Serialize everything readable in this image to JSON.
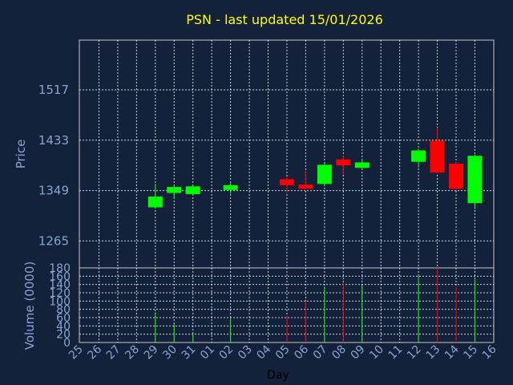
{
  "chart_data": {
    "type": "candlestick",
    "title": "PSN - last updated 15/01/2026",
    "xlabel": "Day",
    "price_panel": {
      "ylabel": "Price",
      "yticks": [
        1265,
        1349,
        1433,
        1517
      ],
      "ylim": [
        1220,
        1600
      ]
    },
    "volume_panel": {
      "ylabel": "Volume (0000)",
      "yticks": [
        0,
        20,
        40,
        60,
        80,
        100,
        120,
        140,
        160,
        180
      ],
      "ylim": [
        0,
        180
      ]
    },
    "categories": [
      "25",
      "26",
      "27",
      "28",
      "29",
      "30",
      "31",
      "01",
      "02",
      "03",
      "04",
      "05",
      "06",
      "07",
      "08",
      "09",
      "10",
      "11",
      "12",
      "13",
      "14",
      "15",
      "16"
    ],
    "candles": [
      {
        "day": "29",
        "open": 1321,
        "close": 1339,
        "high": 1360,
        "low": 1320,
        "volume": 73,
        "direction": "up"
      },
      {
        "day": "30",
        "open": 1345,
        "close": 1355,
        "high": 1357,
        "low": 1335,
        "volume": 45,
        "direction": "up"
      },
      {
        "day": "31",
        "open": 1343,
        "close": 1356,
        "high": 1358,
        "low": 1341,
        "volume": 20,
        "direction": "up"
      },
      {
        "day": "02",
        "open": 1350,
        "close": 1358,
        "high": 1363,
        "low": 1344,
        "volume": 58,
        "direction": "up"
      },
      {
        "day": "05",
        "open": 1368,
        "close": 1358,
        "high": 1372,
        "low": 1345,
        "volume": 65,
        "direction": "down"
      },
      {
        "day": "06",
        "open": 1359,
        "close": 1352,
        "high": 1382,
        "low": 1351,
        "volume": 100,
        "direction": "down"
      },
      {
        "day": "07",
        "open": 1360,
        "close": 1392,
        "high": 1394,
        "low": 1359,
        "volume": 135,
        "direction": "up"
      },
      {
        "day": "08",
        "open": 1401,
        "close": 1391,
        "high": 1407,
        "low": 1375,
        "volume": 145,
        "direction": "down"
      },
      {
        "day": "09",
        "open": 1387,
        "close": 1396,
        "high": 1402,
        "low": 1383,
        "volume": 138,
        "direction": "up"
      },
      {
        "day": "12",
        "open": 1397,
        "close": 1416,
        "high": 1419,
        "low": 1387,
        "volume": 163,
        "direction": "up"
      },
      {
        "day": "13",
        "open": 1432,
        "close": 1379,
        "high": 1454,
        "low": 1377,
        "volume": 182,
        "direction": "down"
      },
      {
        "day": "14",
        "open": 1394,
        "close": 1352,
        "high": 1396,
        "low": 1350,
        "volume": 135,
        "direction": "down"
      },
      {
        "day": "15",
        "open": 1328,
        "close": 1407,
        "high": 1409,
        "low": 1318,
        "volume": 152,
        "direction": "up"
      }
    ],
    "colors": {
      "up": "#00ff00",
      "down": "#ff0000"
    },
    "grid": true
  }
}
